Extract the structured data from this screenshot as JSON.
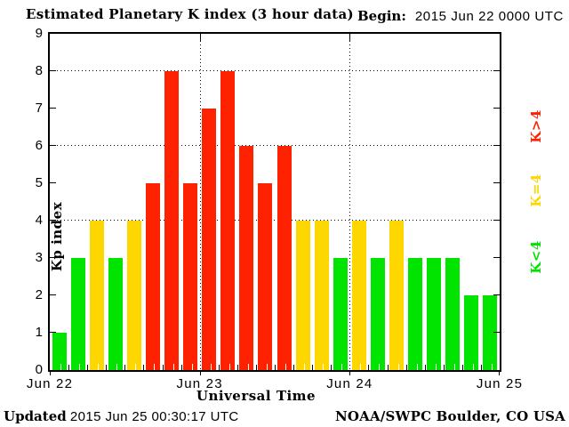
{
  "title": "Estimated Planetary K index (3 hour data)",
  "begin": {
    "label": "Begin:",
    "value": "2015 Jun 22 0000 UTC"
  },
  "footer": {
    "updated_label": "Updated",
    "updated_value": "2015 Jun 25 00:30:17 UTC",
    "credit": "NOAA/SWPC Boulder, CO USA"
  },
  "colors": {
    "green": "#00E400",
    "yellow": "#FFD700",
    "red": "#FF2200"
  },
  "legend": [
    {
      "label": "K>4",
      "color_key": "red"
    },
    {
      "label": "K=4",
      "color_key": "yellow"
    },
    {
      "label": "K<4",
      "color_key": "green"
    }
  ],
  "chart_data": {
    "type": "bar",
    "title": "Estimated Planetary K index (3 hour data)",
    "xlabel": "Universal Time",
    "ylabel": "Kp index",
    "begin": "2015 Jun 22 0000 UTC",
    "interval_hours": 3,
    "ylim": [
      0,
      9
    ],
    "yticks": [
      0,
      1,
      2,
      3,
      4,
      5,
      6,
      7,
      8,
      9
    ],
    "gridlines_y": [
      4,
      6,
      8
    ],
    "grid": "dotted",
    "legend_position": "right",
    "x_day_labels": [
      "Jun 22",
      "Jun 23",
      "Jun 24",
      "Jun 25"
    ],
    "days": [
      {
        "date": "Jun 22",
        "values": [
          1,
          3,
          4,
          3,
          4,
          5,
          8,
          5
        ]
      },
      {
        "date": "Jun 23",
        "values": [
          7,
          8,
          6,
          5,
          6,
          4,
          4,
          3
        ]
      },
      {
        "date": "Jun 24",
        "values": [
          4,
          3,
          4,
          3,
          3,
          3,
          2,
          2
        ]
      }
    ],
    "values": [
      1,
      3,
      4,
      3,
      4,
      5,
      8,
      5,
      7,
      8,
      6,
      5,
      6,
      4,
      4,
      3,
      4,
      3,
      4,
      3,
      3,
      3,
      2,
      2
    ],
    "bar_colors": [
      "green",
      "green",
      "yellow",
      "green",
      "yellow",
      "red",
      "red",
      "red",
      "red",
      "red",
      "red",
      "red",
      "red",
      "yellow",
      "yellow",
      "green",
      "yellow",
      "green",
      "yellow",
      "green",
      "green",
      "green",
      "green",
      "green"
    ],
    "color_rule": {
      "red": "K>4",
      "yellow": "K=4",
      "green": "K<4"
    }
  }
}
